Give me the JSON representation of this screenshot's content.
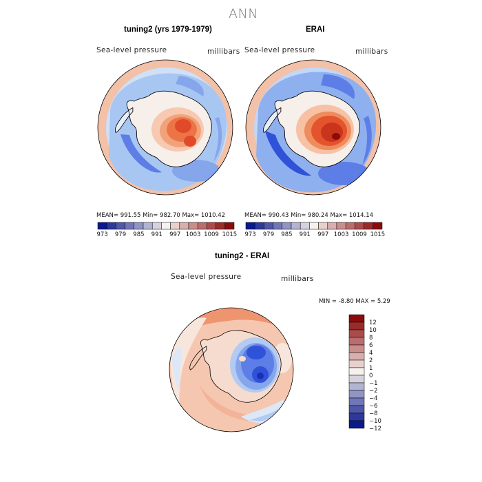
{
  "figure_title": "ANN",
  "colors": {
    "low": "#0a1a8c",
    "mid": "#f7f1ee",
    "high": "#8b0a0a"
  },
  "chart_data": [
    {
      "type": "heatmap",
      "projection": "south polar stereographic",
      "title": "tuning2 (yrs 1979-1979)",
      "variable": "Sea-level pressure",
      "units": "millibars",
      "mean": "991.55",
      "min": "982.70",
      "max": "1010.42",
      "stats_text": "MEAN= 991.55   Min= 982.70   Max= 1010.42",
      "colorbar_levels": [
        973,
        976,
        979,
        982,
        985,
        988,
        991,
        994,
        997,
        1000,
        1003,
        1006,
        1009,
        1012,
        1015
      ],
      "colorbar_labels": [
        "973",
        "979",
        "985",
        "991",
        "997",
        "1003",
        "1009",
        "1015"
      ]
    },
    {
      "type": "heatmap",
      "projection": "south polar stereographic",
      "title": "ERAI",
      "variable": "Sea-level pressure",
      "units": "millibars",
      "mean": "990.43",
      "min": "980.24",
      "max": "1014.14",
      "stats_text": "MEAN= 990.43   Min= 980.24   Max= 1014.14",
      "colorbar_levels": [
        973,
        976,
        979,
        982,
        985,
        988,
        991,
        994,
        997,
        1000,
        1003,
        1006,
        1009,
        1012,
        1015
      ],
      "colorbar_labels": [
        "973",
        "979",
        "985",
        "991",
        "997",
        "1003",
        "1009",
        "1015"
      ]
    },
    {
      "type": "heatmap",
      "projection": "south polar stereographic",
      "title": "tuning2 - ERAI",
      "variable": "Sea-level pressure",
      "units": "millibars",
      "min": "-8.80",
      "max": "5.29",
      "stats_text": "MIN =  -8.80 MAX =   5.29",
      "colorbar_levels": [
        12,
        10,
        8,
        6,
        4,
        2,
        1,
        0,
        -1,
        -2,
        -4,
        -6,
        -8,
        -10,
        -12
      ],
      "colorbar_labels": [
        "12",
        "10",
        "8",
        "6",
        "4",
        "2",
        "1",
        "0",
        "−1",
        "−2",
        "−4",
        "−6",
        "−8",
        "−10",
        "−12"
      ]
    }
  ]
}
